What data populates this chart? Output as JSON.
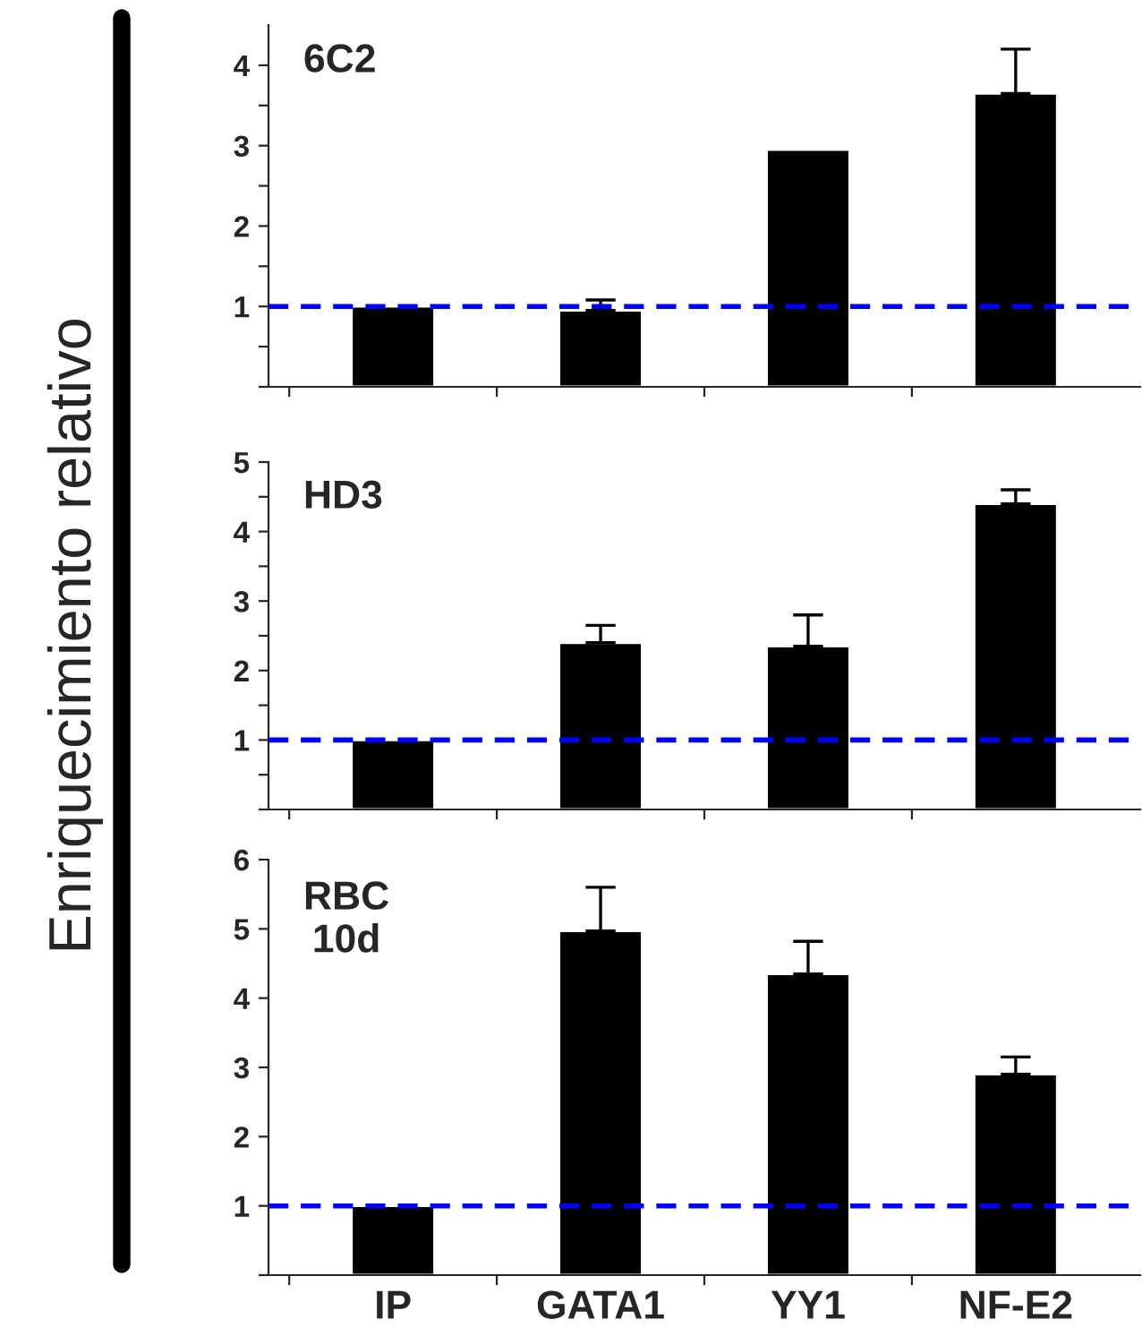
{
  "chart_data": [
    {
      "type": "bar",
      "title": "6C2",
      "categories": [
        null,
        null,
        null,
        null
      ],
      "values": [
        1.0,
        0.95,
        2.95,
        3.65
      ],
      "errors": [
        null,
        [
          0.95,
          1.08
        ],
        null,
        [
          3.65,
          4.2
        ]
      ],
      "color": "#000000",
      "ylim": [
        0,
        4.5
      ],
      "yticks": [
        {
          "value": 0,
          "label": null
        },
        {
          "value": 0.5,
          "label": null
        },
        1,
        {
          "value": 1.5,
          "label": null
        },
        2,
        {
          "value": 2.5,
          "label": null
        },
        3,
        {
          "value": 3.5,
          "label": null
        },
        4
      ],
      "ref_lines": [
        {
          "axis": "y",
          "value": 1,
          "color": "#0000ff",
          "line_style": "dashed"
        }
      ],
      "tick_labels": "y",
      "grid": false
    },
    {
      "type": "bar",
      "title": "HD3",
      "ylabel": "Enriquecimiento relativo",
      "categories": [
        null,
        null,
        null,
        null
      ],
      "values": [
        1.0,
        2.4,
        2.35,
        4.4
      ],
      "errors": [
        null,
        [
          2.4,
          2.65
        ],
        [
          2.35,
          2.8
        ],
        [
          4.4,
          4.6
        ]
      ],
      "color": "#000000",
      "ylim": [
        0,
        5
      ],
      "yticks": [
        {
          "value": 0,
          "label": null
        },
        {
          "value": 0.5,
          "label": null
        },
        1,
        {
          "value": 1.5,
          "label": null
        },
        2,
        {
          "value": 2.5,
          "label": null
        },
        3,
        {
          "value": 3.5,
          "label": null
        },
        4,
        {
          "value": 4.5,
          "label": null
        },
        5
      ],
      "ref_lines": [
        {
          "axis": "y",
          "value": 1,
          "color": "#0000ff",
          "line_style": "dashed"
        }
      ],
      "tick_labels": "y",
      "grid": false
    },
    {
      "type": "bar",
      "title": "RBC\n10d",
      "categories": [
        "IP",
        "GATA1",
        "YY1",
        "NF-E2"
      ],
      "values": [
        1.0,
        4.97,
        4.35,
        2.9
      ],
      "errors": [
        null,
        [
          4.97,
          5.6
        ],
        [
          4.35,
          4.82
        ],
        [
          2.9,
          3.15
        ]
      ],
      "color": "#000000",
      "ylim": [
        0,
        6
      ],
      "yticks": [
        {
          "value": 0,
          "label": null
        },
        1,
        2,
        3,
        4,
        5,
        6
      ],
      "ref_lines": [
        {
          "axis": "y",
          "value": 1,
          "color": "#0000ff",
          "line_style": "dashed"
        }
      ],
      "grid": false
    }
  ]
}
